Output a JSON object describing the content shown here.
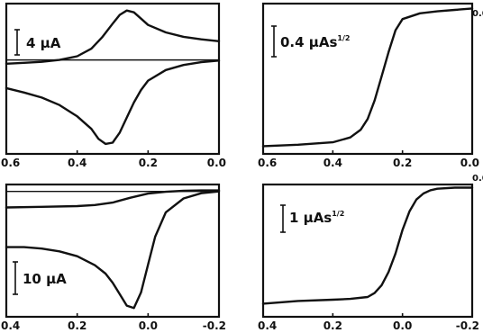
{
  "chart_data": [
    {
      "type": "line",
      "panel": "top-left",
      "x_ticks": [
        "0.6",
        "0.4",
        "0.2",
        "0.0"
      ],
      "xlim": [
        0.6,
        0.0
      ],
      "scale_bar": {
        "label": "4  μA",
        "superscript": ""
      },
      "horizontal_reference": true,
      "series": [
        {
          "x": [
            0.6,
            0.55,
            0.5,
            0.45,
            0.4,
            0.36,
            0.33,
            0.3,
            0.28,
            0.26,
            0.24,
            0.22,
            0.2,
            0.15,
            0.1,
            0.05,
            0.0
          ],
          "y": [
            -0.6,
            -0.45,
            -0.3,
            0.0,
            0.6,
            1.8,
            3.6,
            5.8,
            7.2,
            7.9,
            7.6,
            6.6,
            5.6,
            4.4,
            3.7,
            3.3,
            3.0
          ]
        },
        {
          "x": [
            0.6,
            0.55,
            0.5,
            0.45,
            0.4,
            0.36,
            0.34,
            0.32,
            0.3,
            0.28,
            0.26,
            0.24,
            0.22,
            0.2,
            0.15,
            0.1,
            0.05,
            0.0
          ],
          "y": [
            -4.5,
            -5.2,
            -6.0,
            -7.2,
            -9.0,
            -11.0,
            -12.6,
            -13.4,
            -13.2,
            -11.6,
            -9.2,
            -6.8,
            -4.8,
            -3.3,
            -1.6,
            -0.8,
            -0.35,
            -0.1
          ]
        }
      ]
    },
    {
      "type": "line",
      "panel": "top-right",
      "x_ticks": [
        "0.6",
        "0.4",
        "0.2",
        "0.0"
      ],
      "xlim": [
        0.6,
        0.0
      ],
      "scale_bar": {
        "label": "0.4  μAs",
        "superscript": "1/2"
      },
      "edge_label": "0.0",
      "series": [
        {
          "x": [
            0.6,
            0.5,
            0.4,
            0.35,
            0.32,
            0.3,
            0.28,
            0.26,
            0.24,
            0.22,
            0.2,
            0.15,
            0.1,
            0.05,
            0.0
          ],
          "y": [
            -2.84,
            -2.81,
            -2.76,
            -2.66,
            -2.5,
            -2.28,
            -1.9,
            -1.4,
            -0.9,
            -0.45,
            -0.22,
            -0.1,
            -0.06,
            -0.03,
            0.0
          ]
        }
      ]
    },
    {
      "type": "line",
      "panel": "bottom-left",
      "x_ticks": [
        "0.4",
        "0.2",
        "0.0",
        "-0.2"
      ],
      "xlim": [
        0.4,
        -0.2
      ],
      "scale_bar": {
        "label": "10  μA",
        "superscript": ""
      },
      "horizontal_reference": true,
      "series": [
        {
          "x": [
            0.4,
            0.3,
            0.2,
            0.15,
            0.1,
            0.05,
            0.0,
            -0.05,
            -0.1,
            -0.15,
            -0.2
          ],
          "y": [
            -4.6,
            -4.4,
            -4.2,
            -3.9,
            -3.2,
            -1.8,
            -0.6,
            -0.1,
            0.2,
            0.3,
            0.3
          ]
        },
        {
          "x": [
            0.4,
            0.35,
            0.3,
            0.25,
            0.2,
            0.15,
            0.12,
            0.1,
            0.08,
            0.06,
            0.04,
            0.02,
            0.0,
            -0.02,
            -0.05,
            -0.1,
            -0.15,
            -0.2
          ],
          "y": [
            -16.0,
            -16.0,
            -16.4,
            -17.2,
            -18.6,
            -21.2,
            -23.6,
            -26.2,
            -29.5,
            -32.8,
            -33.5,
            -29.0,
            -21.0,
            -13.0,
            -6.0,
            -2.0,
            -0.5,
            0.0
          ]
        }
      ]
    },
    {
      "type": "line",
      "panel": "bottom-right",
      "x_ticks": [
        "0.4",
        "0.2",
        "0.0",
        "-0.2"
      ],
      "xlim": [
        0.4,
        -0.2
      ],
      "scale_bar": {
        "label": "1  μAs",
        "superscript": "1/2"
      },
      "edge_label": "0.0",
      "series": [
        {
          "x": [
            0.4,
            0.3,
            0.2,
            0.15,
            0.1,
            0.08,
            0.06,
            0.04,
            0.02,
            0.0,
            -0.02,
            -0.04,
            -0.06,
            -0.08,
            -0.1,
            -0.15,
            -0.2
          ],
          "y": [
            -4.4,
            -4.3,
            -4.25,
            -4.22,
            -4.15,
            -4.0,
            -3.7,
            -3.2,
            -2.5,
            -1.6,
            -0.9,
            -0.45,
            -0.22,
            -0.1,
            -0.04,
            0.0,
            0.0
          ]
        }
      ]
    }
  ]
}
